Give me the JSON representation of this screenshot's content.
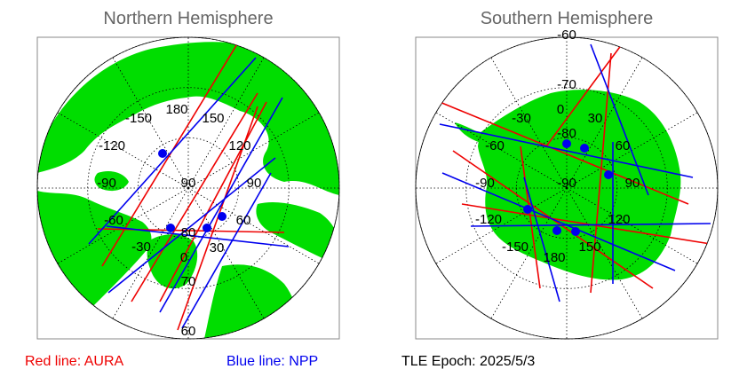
{
  "panels": {
    "north": {
      "title": "Northern Hemisphere",
      "lon_labels": [
        "180",
        "150",
        "120",
        "90",
        "60",
        "30",
        "0",
        "-30",
        "-60",
        "-90",
        "-120",
        "-150"
      ],
      "lat_labels": [
        "90",
        "80",
        "70",
        "60"
      ]
    },
    "south": {
      "title": "Southern Hemisphere",
      "lon_labels": [
        "0",
        "30",
        "60",
        "90",
        "120",
        "150",
        "180",
        "-150",
        "-120",
        "-90",
        "-60",
        "-30"
      ],
      "lat_labels": [
        "-60",
        "-70",
        "-80",
        "-90"
      ]
    }
  },
  "legend": {
    "aura": "Red line: AURA",
    "npp": "Blue line: NPP",
    "epoch": "TLE Epoch: 2025/5/3"
  },
  "colors": {
    "land": "#00dd00",
    "ocean": "#ffffff",
    "aura": "#ee0000",
    "npp": "#0000ee",
    "grid": "#000000",
    "title": "#666666"
  }
}
